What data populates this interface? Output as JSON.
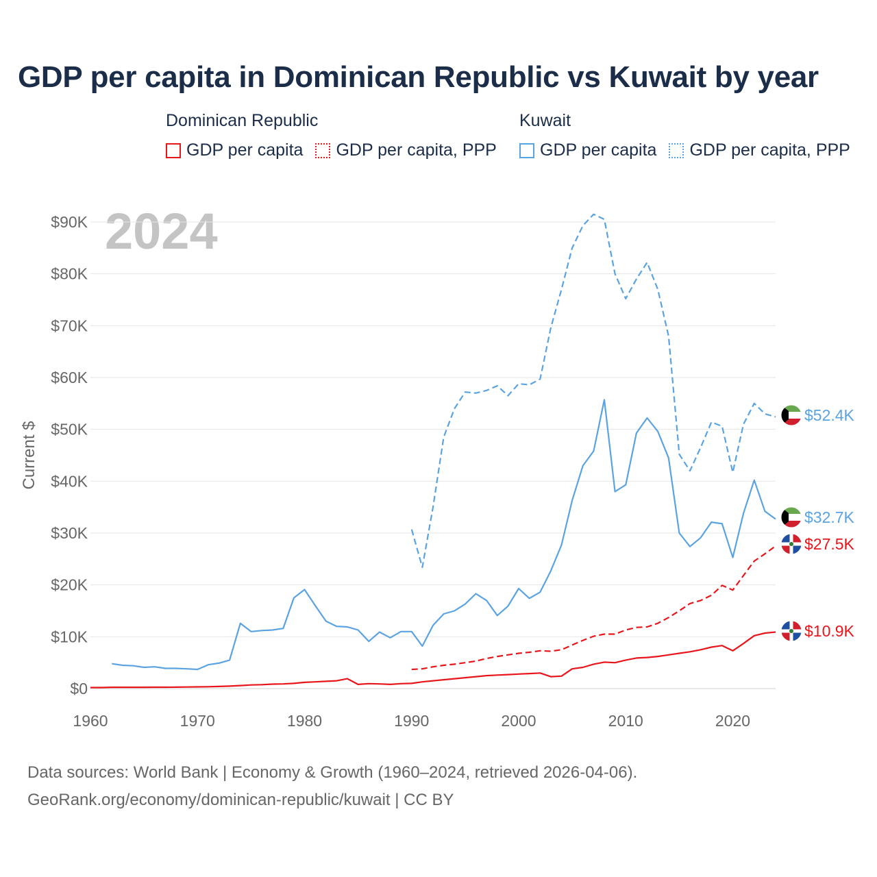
{
  "title": "GDP per capita in Dominican Republic vs Kuwait by year",
  "legend": {
    "groups": [
      {
        "name": "Dominican Republic",
        "color": "#e8161b",
        "items": [
          {
            "label": "GDP per capita",
            "style": "solid"
          },
          {
            "label": "GDP per capita, PPP",
            "style": "dotted"
          }
        ]
      },
      {
        "name": "Kuwait",
        "color": "#5ba3e0",
        "items": [
          {
            "label": "GDP per capita",
            "style": "solid"
          },
          {
            "label": "GDP per capita, PPP",
            "style": "dotted"
          }
        ]
      }
    ]
  },
  "colors": {
    "dominican": "#e8161b",
    "kuwait": "#5ba3e0",
    "grid": "#e6e6e6",
    "axis_text": "#666666",
    "year_watermark": "#c4c4c4"
  },
  "chart_data": {
    "type": "line",
    "title": "GDP per capita in Dominican Republic vs Kuwait by year",
    "year_label": "2024",
    "xlabel": "",
    "ylabel": "Current $",
    "xlim": [
      1960,
      2024
    ],
    "ylim": [
      0,
      90000
    ],
    "x_ticks": [
      1960,
      1970,
      1980,
      1990,
      2000,
      2010,
      2020
    ],
    "x_tick_labels": [
      "1960",
      "1970",
      "1980",
      "1990",
      "2000",
      "2010",
      "2020"
    ],
    "y_ticks": [
      0,
      10000,
      20000,
      30000,
      40000,
      50000,
      60000,
      70000,
      80000,
      90000
    ],
    "y_tick_labels": [
      "$0",
      "$10K",
      "$20K",
      "$30K",
      "$40K",
      "$50K",
      "$60K",
      "$70K",
      "$80K",
      "$90K"
    ],
    "grid": true,
    "series": [
      {
        "name": "Kuwait GDP per capita, PPP",
        "country": "Kuwait",
        "style": "dashed",
        "color": "#5ba3e0",
        "x": [
          1990,
          1991,
          1992,
          1993,
          1994,
          1995,
          1996,
          1997,
          1998,
          1999,
          2000,
          2001,
          2002,
          2003,
          2004,
          2005,
          2006,
          2007,
          2008,
          2009,
          2010,
          2011,
          2012,
          2013,
          2014,
          2015,
          2016,
          2017,
          2018,
          2019,
          2020,
          2021,
          2022,
          2023,
          2024
        ],
        "values": [
          30700,
          23400,
          35000,
          48500,
          54000,
          57200,
          57000,
          57500,
          58400,
          56500,
          58800,
          58600,
          59700,
          69600,
          77000,
          85000,
          89300,
          91500,
          90500,
          80000,
          75200,
          79000,
          82200,
          77000,
          68000,
          45200,
          42000,
          46500,
          51400,
          50600,
          41700,
          51000,
          55000,
          53000,
          52400
        ],
        "end_label": "$52.4K"
      },
      {
        "name": "Kuwait GDP per capita",
        "country": "Kuwait",
        "style": "solid",
        "color": "#5ba3e0",
        "x": [
          1962,
          1963,
          1964,
          1965,
          1966,
          1967,
          1968,
          1969,
          1970,
          1971,
          1972,
          1973,
          1974,
          1975,
          1976,
          1977,
          1978,
          1979,
          1980,
          1981,
          1982,
          1983,
          1984,
          1985,
          1986,
          1987,
          1988,
          1989,
          1990,
          1991,
          1992,
          1993,
          1994,
          1995,
          1996,
          1997,
          1998,
          1999,
          2000,
          2001,
          2002,
          2003,
          2004,
          2005,
          2006,
          2007,
          2008,
          2009,
          2010,
          2011,
          2012,
          2013,
          2014,
          2015,
          2016,
          2017,
          2018,
          2019,
          2020,
          2021,
          2022,
          2023,
          2024
        ],
        "values": [
          4800,
          4500,
          4400,
          4100,
          4200,
          3900,
          3900,
          3800,
          3700,
          4600,
          4900,
          5500,
          12600,
          11000,
          11200,
          11300,
          11600,
          17500,
          19100,
          16000,
          13000,
          12000,
          11900,
          11300,
          9100,
          10900,
          9800,
          11000,
          11000,
          8200,
          12200,
          14400,
          15000,
          16300,
          18300,
          17000,
          14100,
          15900,
          19300,
          17400,
          18600,
          22700,
          27700,
          36300,
          43000,
          45800,
          55700,
          38000,
          39300,
          49300,
          52200,
          49600,
          44500,
          30000,
          27400,
          29100,
          32100,
          31800,
          25300,
          33800,
          40200,
          34200,
          32700
        ],
        "end_label": "$32.7K"
      },
      {
        "name": "Dominican Republic GDP per capita, PPP",
        "country": "Dominican Republic",
        "style": "dashed",
        "color": "#e8161b",
        "x": [
          1990,
          1991,
          1992,
          1993,
          1994,
          1995,
          1996,
          1997,
          1998,
          1999,
          2000,
          2001,
          2002,
          2003,
          2004,
          2005,
          2006,
          2007,
          2008,
          2009,
          2010,
          2011,
          2012,
          2013,
          2014,
          2015,
          2016,
          2017,
          2018,
          2019,
          2020,
          2021,
          2022,
          2023,
          2024
        ],
        "values": [
          3700,
          3800,
          4200,
          4500,
          4700,
          5000,
          5300,
          5800,
          6200,
          6500,
          6800,
          7000,
          7300,
          7200,
          7500,
          8400,
          9300,
          10100,
          10500,
          10500,
          11300,
          11800,
          11900,
          12600,
          13700,
          15000,
          16400,
          17000,
          18000,
          19900,
          19000,
          21800,
          24600,
          26000,
          27500
        ],
        "end_label": "$27.5K"
      },
      {
        "name": "Dominican Republic GDP per capita",
        "country": "Dominican Republic",
        "style": "solid",
        "color": "#e8161b",
        "x": [
          1960,
          1961,
          1962,
          1963,
          1964,
          1965,
          1966,
          1967,
          1968,
          1969,
          1970,
          1971,
          1972,
          1973,
          1974,
          1975,
          1976,
          1977,
          1978,
          1979,
          1980,
          1981,
          1982,
          1983,
          1984,
          1985,
          1986,
          1987,
          1988,
          1989,
          1990,
          1991,
          1992,
          1993,
          1994,
          1995,
          1996,
          1997,
          1998,
          1999,
          2000,
          2001,
          2002,
          2003,
          2004,
          2005,
          2006,
          2007,
          2008,
          2009,
          2010,
          2011,
          2012,
          2013,
          2014,
          2015,
          2016,
          2017,
          2018,
          2019,
          2020,
          2021,
          2022,
          2023,
          2024
        ],
        "values": [
          200,
          200,
          250,
          250,
          250,
          250,
          260,
          260,
          280,
          300,
          330,
          360,
          410,
          470,
          580,
          700,
          750,
          860,
          900,
          1000,
          1200,
          1300,
          1400,
          1500,
          1900,
          800,
          950,
          900,
          800,
          950,
          1000,
          1300,
          1500,
          1700,
          1900,
          2100,
          2300,
          2500,
          2600,
          2700,
          2800,
          2900,
          3000,
          2300,
          2400,
          3800,
          4100,
          4700,
          5100,
          5000,
          5500,
          5900,
          6000,
          6200,
          6500,
          6800,
          7100,
          7500,
          8000,
          8300,
          7300,
          8700,
          10200,
          10700,
          10900
        ],
        "end_label": "$10.9K"
      }
    ]
  },
  "source": {
    "line1": "Data sources: World Bank | Economy & Growth (1960–2024, retrieved 2026-04-06).",
    "line2": "GeoRank.org/economy/dominican-republic/kuwait | CC BY"
  }
}
